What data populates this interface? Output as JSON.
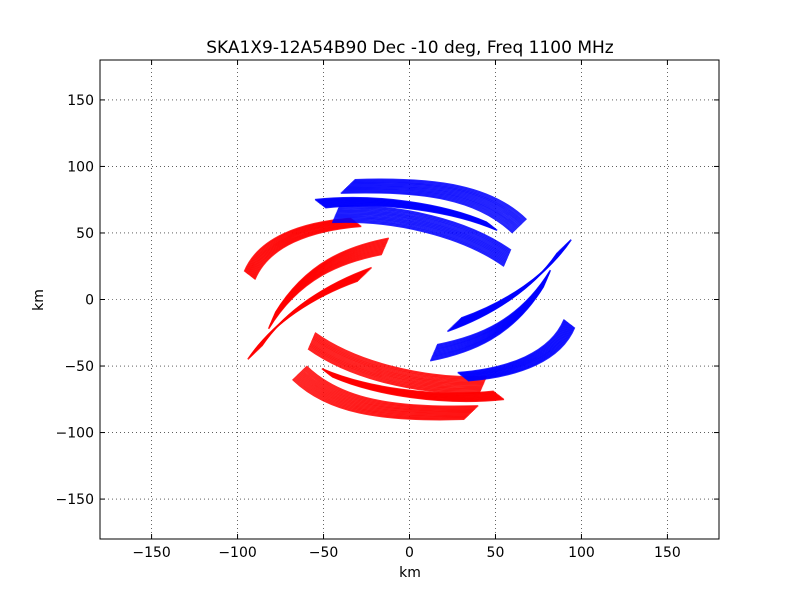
{
  "chart_data": {
    "type": "scatter",
    "title": "SKA1X9-12A54B90 Dec -10 deg, Freq 1100 MHz",
    "xlabel": "km",
    "ylabel": "km",
    "xlim": [
      -180,
      180
    ],
    "ylim": [
      -180,
      180
    ],
    "xticks": [
      -150,
      -100,
      -50,
      0,
      50,
      100,
      150
    ],
    "yticks": [
      -150,
      -100,
      -50,
      0,
      50,
      100,
      150
    ],
    "xtick_labels": [
      "−150",
      "−100",
      "−50",
      "0",
      "50",
      "100",
      "150"
    ],
    "ytick_labels": [
      "−150",
      "−100",
      "−50",
      "0",
      "50",
      "100",
      "150"
    ],
    "grid": true,
    "grid_style": "dotted",
    "series": [
      {
        "color": "#ff0000",
        "arcs": [
          {
            "points": [
              [
                -90,
                15
              ],
              [
                -82,
                40
              ],
              [
                -58,
                52
              ],
              [
                -28,
                55
              ]
            ]
          },
          {
            "points": [
              [
                -86,
                -35
              ],
              [
                -72,
                -8
              ],
              [
                -48,
                12
              ],
              [
                -22,
                24
              ]
            ]
          },
          {
            "points": [
              [
                -78,
                -10
              ],
              [
                -60,
                28
              ],
              [
                -36,
                40
              ],
              [
                -12,
                46
              ]
            ]
          },
          {
            "points": [
              [
                -45,
                -58
              ],
              [
                -20,
                -72
              ],
              [
                20,
                -80
              ],
              [
                55,
                -75
              ]
            ]
          },
          {
            "points": [
              [
                -60,
                -50
              ],
              [
                -40,
                -75
              ],
              [
                -10,
                -82
              ],
              [
                40,
                -80
              ]
            ]
          },
          {
            "points": [
              [
                -55,
                -25
              ],
              [
                -30,
                -48
              ],
              [
                10,
                -60
              ],
              [
                45,
                -58
              ]
            ]
          }
        ],
        "arc_spread": [
          [
            -6,
            6
          ],
          [
            -8,
            -10
          ],
          [
            -4,
            -12
          ]
        ]
      },
      {
        "color": "#0000ff",
        "arcs": [
          {
            "points": [
              [
                90,
                -15
              ],
              [
                82,
                -40
              ],
              [
                58,
                -52
              ],
              [
                28,
                -55
              ]
            ]
          },
          {
            "points": [
              [
                86,
                35
              ],
              [
                72,
                8
              ],
              [
                48,
                -12
              ],
              [
                22,
                -24
              ]
            ]
          },
          {
            "points": [
              [
                78,
                10
              ],
              [
                60,
                -28
              ],
              [
                36,
                -40
              ],
              [
                12,
                -46
              ]
            ]
          },
          {
            "points": [
              [
                45,
                58
              ],
              [
                20,
                72
              ],
              [
                -20,
                80
              ],
              [
                -55,
                75
              ]
            ]
          },
          {
            "points": [
              [
                60,
                50
              ],
              [
                40,
                75
              ],
              [
                10,
                82
              ],
              [
                -40,
                80
              ]
            ]
          },
          {
            "points": [
              [
                55,
                25
              ],
              [
                30,
                48
              ],
              [
                -10,
                60
              ],
              [
                -45,
                58
              ]
            ]
          }
        ],
        "arc_spread": [
          [
            6,
            -6
          ],
          [
            8,
            10
          ],
          [
            4,
            12
          ]
        ]
      }
    ]
  }
}
